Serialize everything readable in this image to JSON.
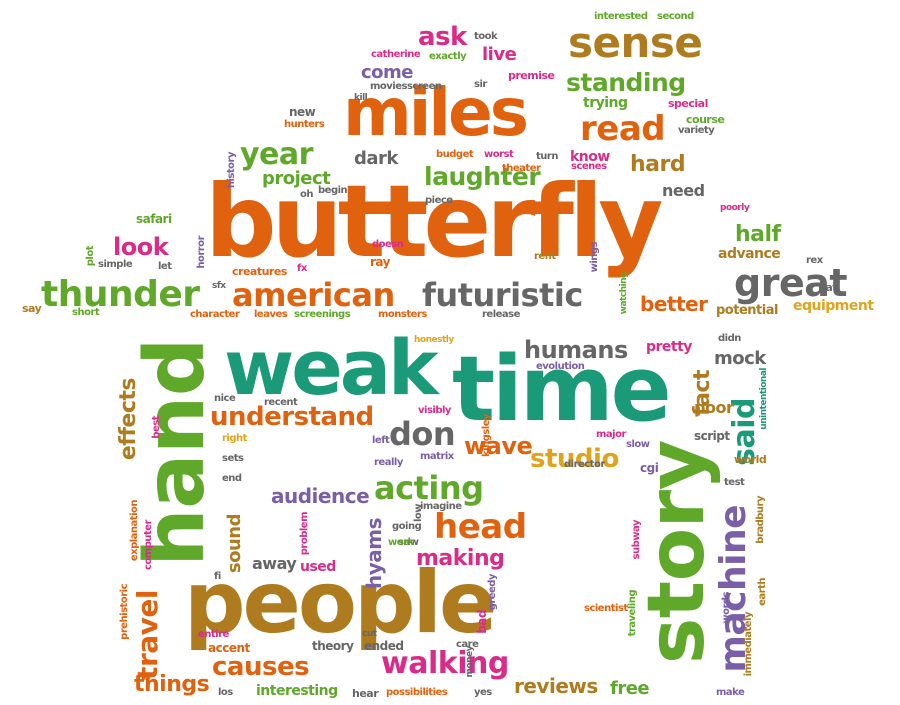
{
  "palette": {
    "orange": "#e0620f",
    "brown": "#ae7b1e",
    "teal": "#1a9a78",
    "green": "#5fa829",
    "magenta": "#d92c8a",
    "gray": "#666666",
    "purple": "#7a5ea7",
    "yellow": "#e0a41c"
  },
  "words": [
    {
      "text": "butterfly",
      "color": "orange"
    },
    {
      "text": "miles",
      "color": "orange"
    },
    {
      "text": "sense",
      "color": "brown"
    },
    {
      "text": "ask",
      "color": "magenta"
    },
    {
      "text": "live",
      "color": "magenta"
    },
    {
      "text": "come",
      "color": "purple"
    },
    {
      "text": "standing",
      "color": "green"
    },
    {
      "text": "read",
      "color": "orange"
    },
    {
      "text": "trying",
      "color": "green"
    },
    {
      "text": "year",
      "color": "green"
    },
    {
      "text": "dark",
      "color": "gray"
    },
    {
      "text": "laughter",
      "color": "green"
    },
    {
      "text": "hard",
      "color": "brown"
    },
    {
      "text": "project",
      "color": "green"
    },
    {
      "text": "know",
      "color": "magenta"
    },
    {
      "text": "look",
      "color": "magenta"
    },
    {
      "text": "half",
      "color": "green"
    },
    {
      "text": "thunder",
      "color": "green"
    },
    {
      "text": "american",
      "color": "orange"
    },
    {
      "text": "futuristic",
      "color": "gray"
    },
    {
      "text": "great",
      "color": "gray"
    },
    {
      "text": "better",
      "color": "orange"
    },
    {
      "text": "advance",
      "color": "brown"
    },
    {
      "text": "need",
      "color": "gray"
    },
    {
      "text": "equipment",
      "color": "yellow"
    },
    {
      "text": "potential",
      "color": "brown"
    },
    {
      "text": "weak",
      "color": "teal"
    },
    {
      "text": "time",
      "color": "teal"
    },
    {
      "text": "hand",
      "color": "green"
    },
    {
      "text": "people",
      "color": "brown"
    },
    {
      "text": "story",
      "color": "green"
    },
    {
      "text": "humans",
      "color": "gray"
    },
    {
      "text": "understand",
      "color": "orange"
    },
    {
      "text": "don",
      "color": "gray"
    },
    {
      "text": "wave",
      "color": "orange"
    },
    {
      "text": "studio",
      "color": "yellow"
    },
    {
      "text": "acting",
      "color": "green"
    },
    {
      "text": "audience",
      "color": "purple"
    },
    {
      "text": "head",
      "color": "orange"
    },
    {
      "text": "making",
      "color": "magenta"
    },
    {
      "text": "walking",
      "color": "magenta"
    },
    {
      "text": "causes",
      "color": "orange"
    },
    {
      "text": "travel",
      "color": "orange"
    },
    {
      "text": "effects",
      "color": "brown"
    },
    {
      "text": "machine",
      "color": "purple"
    },
    {
      "text": "said",
      "color": "teal"
    },
    {
      "text": "fact",
      "color": "brown"
    },
    {
      "text": "mock",
      "color": "gray"
    },
    {
      "text": "pretty",
      "color": "magenta"
    },
    {
      "text": "reviews",
      "color": "brown"
    },
    {
      "text": "free",
      "color": "green"
    },
    {
      "text": "things",
      "color": "orange"
    },
    {
      "text": "interesting",
      "color": "green"
    },
    {
      "text": "sound",
      "color": "brown"
    },
    {
      "text": "away",
      "color": "gray"
    },
    {
      "text": "used",
      "color": "magenta"
    },
    {
      "text": "hyams",
      "color": "purple"
    },
    {
      "text": "interested",
      "color": "green"
    },
    {
      "text": "second",
      "color": "green"
    },
    {
      "text": "took",
      "color": "gray"
    },
    {
      "text": "catherine",
      "color": "magenta"
    },
    {
      "text": "exactly",
      "color": "green"
    },
    {
      "text": "moviesscreen",
      "color": "gray"
    },
    {
      "text": "kill",
      "color": "gray"
    },
    {
      "text": "sir",
      "color": "gray"
    },
    {
      "text": "premise",
      "color": "magenta"
    },
    {
      "text": "special",
      "color": "magenta"
    },
    {
      "text": "course",
      "color": "green"
    },
    {
      "text": "variety",
      "color": "gray"
    },
    {
      "text": "new",
      "color": "gray"
    },
    {
      "text": "hunters",
      "color": "orange"
    },
    {
      "text": "history",
      "color": "purple"
    },
    {
      "text": "oh",
      "color": "gray"
    },
    {
      "text": "begin",
      "color": "gray"
    },
    {
      "text": "budget",
      "color": "orange"
    },
    {
      "text": "worst",
      "color": "magenta"
    },
    {
      "text": "turn",
      "color": "gray"
    },
    {
      "text": "scenes",
      "color": "magenta"
    },
    {
      "text": "theater",
      "color": "orange"
    },
    {
      "text": "piece",
      "color": "gray"
    },
    {
      "text": "poorly",
      "color": "magenta"
    },
    {
      "text": "safari",
      "color": "green"
    },
    {
      "text": "plot",
      "color": "green"
    },
    {
      "text": "simple",
      "color": "gray"
    },
    {
      "text": "horror",
      "color": "purple"
    },
    {
      "text": "let",
      "color": "gray"
    },
    {
      "text": "creatures",
      "color": "orange"
    },
    {
      "text": "fx",
      "color": "magenta"
    },
    {
      "text": "doesn",
      "color": "magenta"
    },
    {
      "text": "ray",
      "color": "orange"
    },
    {
      "text": "rent",
      "color": "brown"
    },
    {
      "text": "wings",
      "color": "purple"
    },
    {
      "text": "watching",
      "color": "green"
    },
    {
      "text": "rex",
      "color": "gray"
    },
    {
      "text": "bat",
      "color": "gray"
    },
    {
      "text": "say",
      "color": "brown"
    },
    {
      "text": "short",
      "color": "green"
    },
    {
      "text": "sfx",
      "color": "gray"
    },
    {
      "text": "character",
      "color": "orange"
    },
    {
      "text": "leaves",
      "color": "orange"
    },
    {
      "text": "screenings",
      "color": "green"
    },
    {
      "text": "monsters",
      "color": "orange"
    },
    {
      "text": "release",
      "color": "gray"
    },
    {
      "text": "honestly",
      "color": "yellow"
    },
    {
      "text": "didn",
      "color": "gray"
    },
    {
      "text": "evolution",
      "color": "purple"
    },
    {
      "text": "unintentional",
      "color": "teal"
    },
    {
      "text": "nice",
      "color": "gray"
    },
    {
      "text": "recent",
      "color": "gray"
    },
    {
      "text": "best",
      "color": "magenta"
    },
    {
      "text": "right",
      "color": "yellow"
    },
    {
      "text": "left",
      "color": "purple"
    },
    {
      "text": "visibly",
      "color": "magenta"
    },
    {
      "text": "kingsley",
      "color": "orange"
    },
    {
      "text": "major",
      "color": "magenta"
    },
    {
      "text": "poor",
      "color": "brown"
    },
    {
      "text": "script",
      "color": "gray"
    },
    {
      "text": "slow",
      "color": "purple"
    },
    {
      "text": "cgi",
      "color": "purple"
    },
    {
      "text": "world",
      "color": "brown"
    },
    {
      "text": "test",
      "color": "gray"
    },
    {
      "text": "sets",
      "color": "gray"
    },
    {
      "text": "end",
      "color": "gray"
    },
    {
      "text": "really",
      "color": "purple"
    },
    {
      "text": "matrix",
      "color": "purple"
    },
    {
      "text": "director",
      "color": "gray"
    },
    {
      "text": "explanation",
      "color": "orange"
    },
    {
      "text": "computer",
      "color": "magenta"
    },
    {
      "text": "prehistoric",
      "color": "orange"
    },
    {
      "text": "fi",
      "color": "gray"
    },
    {
      "text": "low",
      "color": "gray"
    },
    {
      "text": "imagine",
      "color": "gray"
    },
    {
      "text": "going",
      "color": "gray"
    },
    {
      "text": "problem",
      "color": "magenta"
    },
    {
      "text": "saw",
      "color": "gray"
    },
    {
      "text": "work",
      "color": "green"
    },
    {
      "text": "greedy",
      "color": "purple"
    },
    {
      "text": "subway",
      "color": "magenta"
    },
    {
      "text": "words",
      "color": "purple"
    },
    {
      "text": "earth",
      "color": "brown"
    },
    {
      "text": "bradbury",
      "color": "brown"
    },
    {
      "text": "traveling",
      "color": "green"
    },
    {
      "text": "scientist",
      "color": "orange"
    },
    {
      "text": "immediately",
      "color": "brown"
    },
    {
      "text": "make",
      "color": "purple"
    },
    {
      "text": "entire",
      "color": "magenta"
    },
    {
      "text": "accent",
      "color": "orange"
    },
    {
      "text": "theory",
      "color": "gray"
    },
    {
      "text": "cut",
      "color": "gray"
    },
    {
      "text": "ended",
      "color": "gray"
    },
    {
      "text": "care",
      "color": "gray"
    },
    {
      "text": "bad",
      "color": "magenta"
    },
    {
      "text": "money",
      "color": "gray"
    },
    {
      "text": "los",
      "color": "gray"
    },
    {
      "text": "hear",
      "color": "gray"
    },
    {
      "text": "possibilities",
      "color": "orange"
    },
    {
      "text": "yes",
      "color": "gray"
    }
  ]
}
